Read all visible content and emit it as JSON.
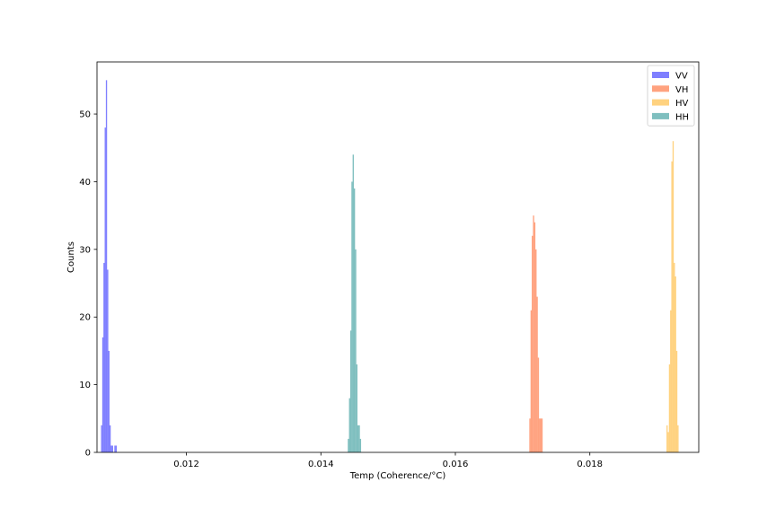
{
  "chart_data": {
    "type": "histogram",
    "title": "",
    "xlabel": "Temp (Coherence/°C)",
    "ylabel": "Counts",
    "xlim": [
      0.01067,
      0.01962
    ],
    "ylim": [
      0,
      57.7
    ],
    "xticks": [
      0.012,
      0.014,
      0.016,
      0.018
    ],
    "xtick_labels": [
      "0.012",
      "0.014",
      "0.016",
      "0.018"
    ],
    "yticks": [
      0,
      10,
      20,
      30,
      40,
      50
    ],
    "ytick_labels": [
      "0",
      "10",
      "20",
      "30",
      "40",
      "50"
    ],
    "grid": false,
    "legend_position": "top-right",
    "series": [
      {
        "name": "VV",
        "color": "#0000ff",
        "opacity": 0.5,
        "bin_edges": [
          0.01073,
          0.010748,
          0.010766,
          0.010784,
          0.010802,
          0.01082,
          0.010838,
          0.010856,
          0.010874,
          0.010892,
          0.01091,
          0.010928,
          0.010946,
          0.010964
        ],
        "counts": [
          4,
          17,
          28,
          48,
          55,
          27,
          15,
          4,
          1,
          1,
          0,
          1,
          1
        ]
      },
      {
        "name": "VH",
        "color": "#ff4500",
        "opacity": 0.5,
        "bin_edges": [
          0.0171,
          0.017118,
          0.017136,
          0.017154,
          0.017172,
          0.01719,
          0.017208,
          0.017226,
          0.017244,
          0.017262,
          0.01728,
          0.017298
        ],
        "counts": [
          5,
          21,
          32,
          35,
          34,
          30,
          23,
          14,
          5,
          5,
          5
        ]
      },
      {
        "name": "HV",
        "color": "#ffa500",
        "opacity": 0.5,
        "bin_edges": [
          0.01914,
          0.019158,
          0.019176,
          0.019194,
          0.019212,
          0.01923,
          0.019248,
          0.019266,
          0.019284,
          0.019302,
          0.01932
        ],
        "counts": [
          4,
          3,
          13,
          21,
          43,
          46,
          28,
          26,
          15,
          4
        ]
      },
      {
        "name": "HH",
        "color": "#008080",
        "opacity": 0.5,
        "bin_edges": [
          0.0144,
          0.014418,
          0.014436,
          0.014454,
          0.014472,
          0.01449,
          0.014508,
          0.014526,
          0.014544,
          0.014562,
          0.01458,
          0.014598
        ],
        "counts": [
          2,
          8,
          18,
          40,
          44,
          39,
          30,
          13,
          4,
          4,
          2
        ]
      }
    ]
  }
}
